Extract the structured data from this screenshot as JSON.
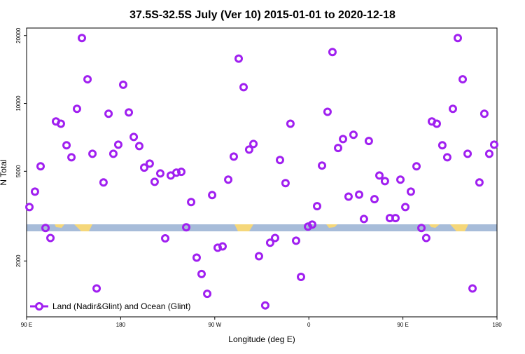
{
  "chart_data": {
    "type": "scatter",
    "title": "37.5S-32.5S July (Ver 10)   2015-01-01 to 2020-12-18",
    "xlabel": "Longitude (deg E)",
    "ylabel": "N Total",
    "ylog": true,
    "legend": "bottom-left",
    "xlim": [
      90,
      540
    ],
    "xticks": [
      {
        "value": 90,
        "label": "90 E"
      },
      180,
      {
        "value": 270,
        "label": "90 W"
      },
      {
        "value": 360,
        "label": "0"
      },
      {
        "value": 450,
        "label": "90 E"
      },
      {
        "value": 540,
        "label": "180"
      }
    ],
    "ylim": [
      1130,
      21600
    ],
    "yticks": [
      2000,
      5000,
      10000,
      20000
    ],
    "series": [
      {
        "name": "Land (Nadir&Glint) and Ocean (Glint)",
        "color": "#a020f0",
        "x": [
          92.7,
          98,
          103.4,
          108.1,
          112.8,
          118.1,
          122.8,
          128.2,
          132.9,
          138.2,
          142.9,
          148.3,
          153,
          157,
          163.6,
          168.4,
          173,
          177.7,
          182.4,
          187.8,
          192.5,
          197.8,
          202.5,
          207.8,
          212.5,
          217.9,
          222.6,
          227.9,
          233.3,
          238,
          242.7,
          247.4,
          252.7,
          257.4,
          262.8,
          267.5,
          272.8,
          277.5,
          282.9,
          288.2,
          292.9,
          297.6,
          302.9,
          307,
          312.3,
          318.3,
          323,
          327.7,
          332.4,
          337.7,
          342.4,
          347.8,
          352.5,
          359.2,
          363.2,
          367.9,
          372.6,
          377.9,
          382.6,
          388,
          392.7,
          398,
          402.7,
          408.1,
          412.7,
          417.4,
          422.8,
          427.5,
          432.8,
          437.5,
          442.9,
          447.6,
          452.3,
          457.6,
          463,
          467.7,
          472.3,
          477.7,
          482.4,
          487.7,
          492.4,
          497.8,
          502.5,
          507.2,
          511.9,
          516.6,
          523.2,
          527.9,
          532.6,
          537.3
        ],
        "values": [
          3470,
          4060,
          5260,
          2800,
          2530,
          8320,
          8130,
          6520,
          5770,
          9460,
          19500,
          12800,
          5980,
          1510,
          4460,
          9000,
          5980,
          6560,
          12100,
          9120,
          7100,
          6470,
          5190,
          5410,
          4490,
          4890,
          2520,
          4790,
          4930,
          4970,
          2820,
          3650,
          2070,
          1750,
          1430,
          3920,
          2290,
          2320,
          4590,
          5810,
          15800,
          11800,
          6240,
          6610,
          2100,
          1270,
          2410,
          2530,
          5610,
          4430,
          8130,
          2460,
          1700,
          2840,
          2900,
          3500,
          5300,
          9180,
          16900,
          6340,
          6950,
          3860,
          7260,
          3940,
          3070,
          6810,
          3760,
          4790,
          4520,
          3100,
          3100,
          4590,
          3470,
          4060,
          5260,
          2800,
          2530,
          8320,
          8130,
          6520,
          5770,
          9460,
          19500,
          12800,
          5980,
          1510,
          4460,
          9000,
          5980,
          6560
        ]
      }
    ]
  }
}
